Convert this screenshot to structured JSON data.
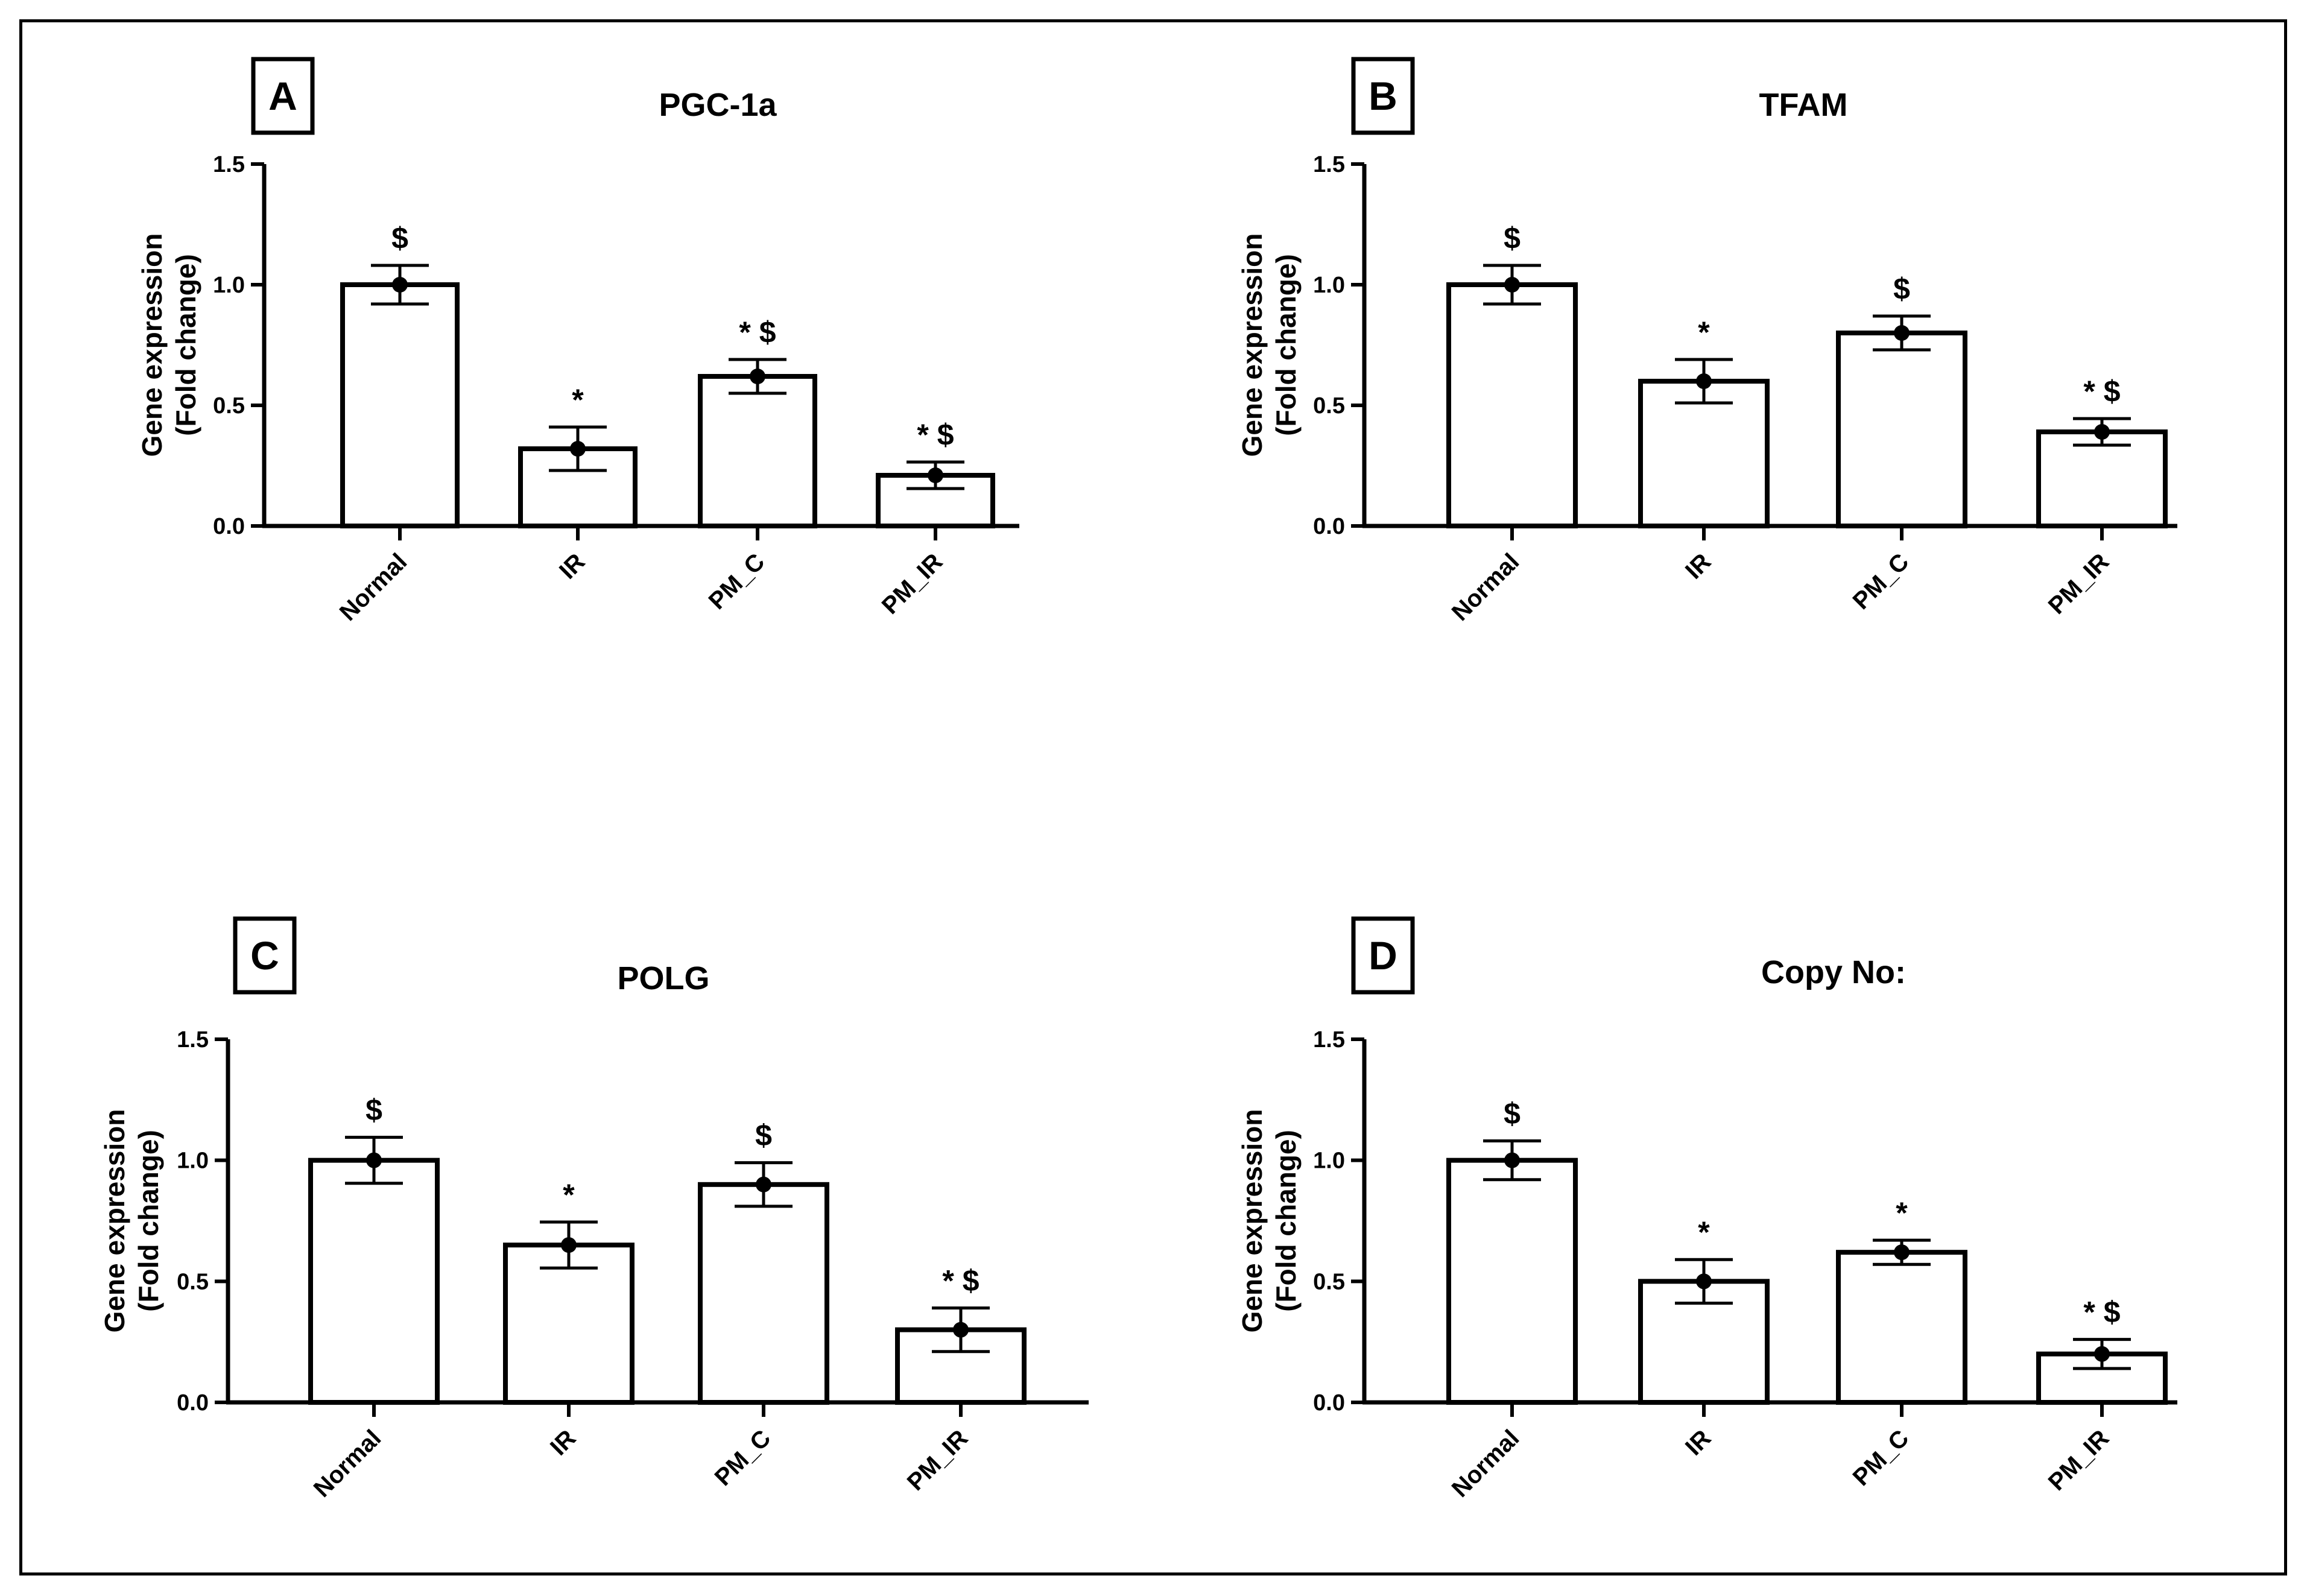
{
  "chart_data": [
    {
      "type": "bar",
      "panel_label": "A",
      "title": "PGC-1a",
      "ylabel": [
        "Gene expression",
        "(Fold change)"
      ],
      "ylim": [
        0,
        1.5
      ],
      "yticks": [
        "0.0",
        "0.5",
        "1.0",
        "1.5"
      ],
      "categories": [
        "Normal",
        "IR",
        "PM_C",
        "PM_IR"
      ],
      "values": [
        1.0,
        0.32,
        0.62,
        0.21
      ],
      "errors": [
        0.08,
        0.09,
        0.07,
        0.055
      ],
      "annotations": [
        "$",
        "*",
        "* $",
        "* $"
      ]
    },
    {
      "type": "bar",
      "panel_label": "B",
      "title": "TFAM",
      "ylabel": [
        "Gene expression",
        "(Fold change)"
      ],
      "ylim": [
        0,
        1.5
      ],
      "yticks": [
        "0.0",
        "0.5",
        "1.0",
        "1.5"
      ],
      "categories": [
        "Normal",
        "IR",
        "PM_C",
        "PM_IR"
      ],
      "values": [
        1.0,
        0.6,
        0.8,
        0.39
      ],
      "errors": [
        0.08,
        0.09,
        0.07,
        0.055
      ],
      "annotations": [
        "$",
        "*",
        "$",
        "* $"
      ]
    },
    {
      "type": "bar",
      "panel_label": "C",
      "title": "POLG",
      "ylabel": [
        "Gene expression",
        "(Fold change)"
      ],
      "ylim": [
        0,
        1.5
      ],
      "yticks": [
        "0.0",
        "0.5",
        "1.0",
        "1.5"
      ],
      "categories": [
        "Normal",
        "IR",
        "PM_C",
        "PM_IR"
      ],
      "values": [
        1.0,
        0.65,
        0.9,
        0.3
      ],
      "errors": [
        0.095,
        0.095,
        0.09,
        0.09
      ],
      "annotations": [
        "$",
        "*",
        "$",
        "* $"
      ]
    },
    {
      "type": "bar",
      "panel_label": "D",
      "title": "Copy No:",
      "ylabel": [
        "Gene expression",
        "(Fold change)"
      ],
      "ylim": [
        0,
        1.5
      ],
      "yticks": [
        "0.0",
        "0.5",
        "1.0",
        "1.5"
      ],
      "categories": [
        "Normal",
        "IR",
        "PM_C",
        "PM_IR"
      ],
      "values": [
        1.0,
        0.5,
        0.62,
        0.2
      ],
      "errors": [
        0.08,
        0.09,
        0.05,
        0.06
      ],
      "annotations": [
        "$",
        "*",
        "*",
        "* $"
      ]
    }
  ]
}
